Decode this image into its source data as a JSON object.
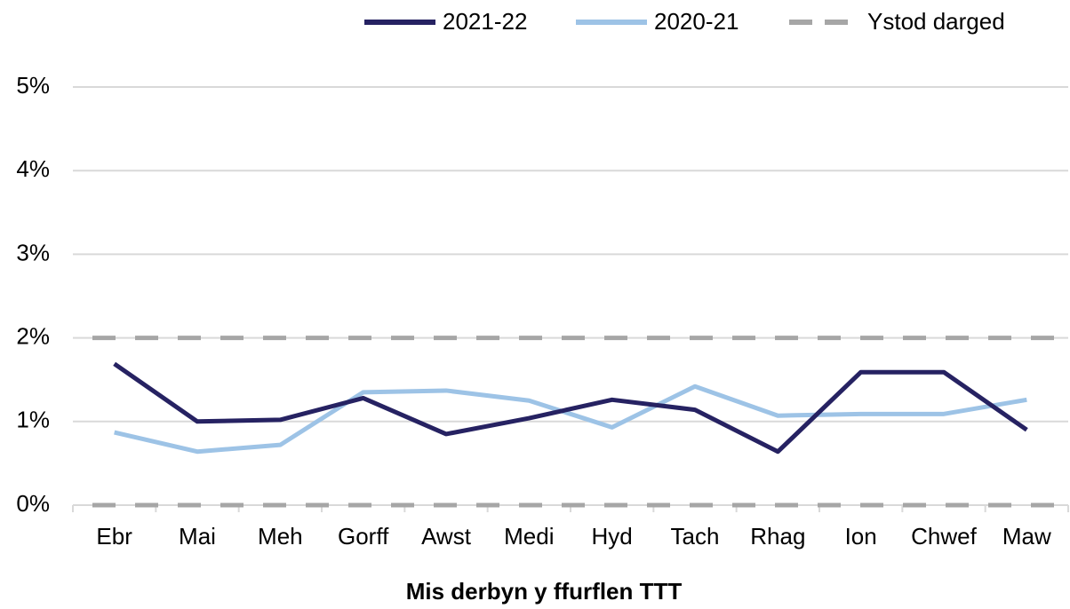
{
  "chart_data": {
    "type": "line",
    "x_label": "Mis derbyn y ffurflen TTT",
    "categories": [
      "Ebr",
      "Mai",
      "Meh",
      "Gorff",
      "Awst",
      "Medi",
      "Hyd",
      "Tach",
      "Rhag",
      "Ion",
      "Chwef",
      "Maw"
    ],
    "series": [
      {
        "name": "2021-22",
        "color": "#262262",
        "values": [
          1.69,
          1.0,
          1.02,
          1.28,
          0.85,
          1.04,
          1.26,
          1.14,
          0.64,
          1.59,
          1.59,
          0.9
        ]
      },
      {
        "name": "2020-21",
        "color": "#9dc3e6",
        "values": [
          0.87,
          0.64,
          0.72,
          1.35,
          1.37,
          1.25,
          0.93,
          1.42,
          1.07,
          1.09,
          1.09,
          1.26
        ]
      }
    ],
    "bands": [
      {
        "name": "Ystod darged",
        "color": "#a6a6a6",
        "lower": 0,
        "upper": 2
      }
    ],
    "ylim": [
      0,
      5
    ],
    "yticks": [
      {
        "value": 0,
        "label": "0%"
      },
      {
        "value": 1,
        "label": "1%"
      },
      {
        "value": 2,
        "label": "2%"
      },
      {
        "value": 3,
        "label": "3%"
      },
      {
        "value": 4,
        "label": "4%"
      },
      {
        "value": 5,
        "label": "5%"
      }
    ],
    "grid": true,
    "legend": "top-right"
  }
}
